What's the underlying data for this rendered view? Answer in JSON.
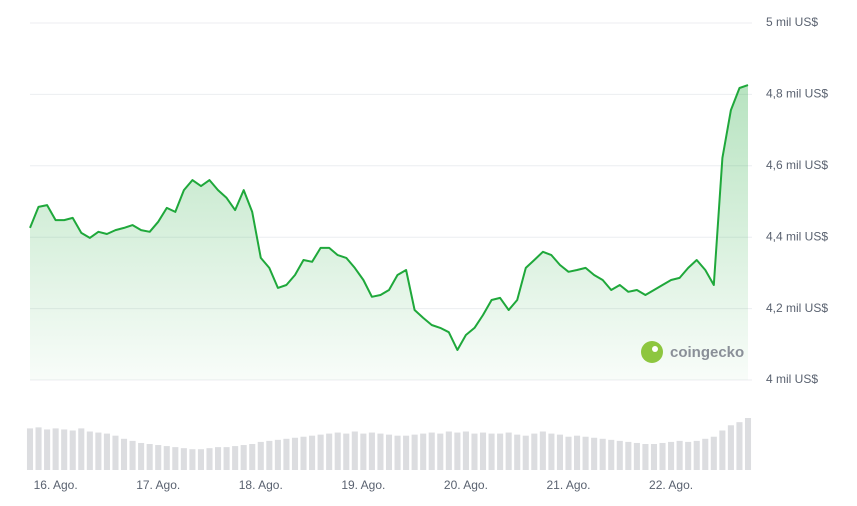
{
  "chart_data": {
    "type": "line",
    "color": "#1fa83b",
    "values": [
      4426,
      4485,
      4490,
      4448,
      4448,
      4454,
      4412,
      4398,
      4415,
      4409,
      4420,
      4426,
      4434,
      4420,
      4415,
      4443,
      4482,
      4471,
      4532,
      4560,
      4543,
      4560,
      4532,
      4510,
      4476,
      4532,
      4471,
      4342,
      4314,
      4258,
      4266,
      4294,
      4336,
      4331,
      4370,
      4370,
      4350,
      4342,
      4314,
      4280,
      4233,
      4238,
      4252,
      4294,
      4308,
      4196,
      4174,
      4154,
      4146,
      4134,
      4084,
      4126,
      4146,
      4182,
      4224,
      4230,
      4196,
      4224,
      4314,
      4336,
      4359,
      4350,
      4322,
      4303,
      4308,
      4314,
      4294,
      4280,
      4252,
      4266,
      4247,
      4252,
      4238,
      4252,
      4266,
      4280,
      4286,
      4314,
      4336,
      4308,
      4266,
      4622,
      4756,
      4818,
      4826
    ],
    "xlim": [
      0,
      84
    ],
    "xticks": [
      {
        "value": 3,
        "label": "16. Ago."
      },
      {
        "value": 15,
        "label": "17. Ago."
      },
      {
        "value": 27,
        "label": "18. Ago."
      },
      {
        "value": 39,
        "label": "19. Ago."
      },
      {
        "value": 51,
        "label": "20. Ago."
      },
      {
        "value": 63,
        "label": "21. Ago."
      },
      {
        "value": 75,
        "label": "22. Ago."
      }
    ],
    "ylim": [
      4000,
      5000
    ],
    "yticks": [
      {
        "value": 4000,
        "label": "4 mil US$"
      },
      {
        "value": 4200,
        "label": "4,2 mil US$"
      },
      {
        "value": 4400,
        "label": "4,4 mil US$"
      },
      {
        "value": 4600,
        "label": "4,6 mil US$"
      },
      {
        "value": 4800,
        "label": "4,8 mil US$"
      },
      {
        "value": 5000,
        "label": "5 mil US$"
      }
    ],
    "grid": true,
    "watermark": "coingecko",
    "volume": {
      "color": "#dcdde0",
      "ylim": [
        0,
        100
      ],
      "values": [
        80,
        82,
        78,
        80,
        78,
        76,
        80,
        74,
        72,
        70,
        66,
        60,
        56,
        52,
        50,
        48,
        46,
        44,
        42,
        40,
        40,
        42,
        44,
        44,
        46,
        48,
        50,
        54,
        56,
        58,
        60,
        62,
        64,
        66,
        68,
        70,
        72,
        70,
        74,
        70,
        72,
        70,
        68,
        66,
        66,
        68,
        70,
        72,
        70,
        74,
        72,
        74,
        70,
        72,
        70,
        70,
        72,
        68,
        66,
        70,
        74,
        70,
        68,
        64,
        66,
        64,
        62,
        60,
        58,
        56,
        54,
        52,
        50,
        50,
        52,
        54,
        56,
        54,
        56,
        60,
        64,
        76,
        86,
        92,
        100
      ]
    }
  }
}
